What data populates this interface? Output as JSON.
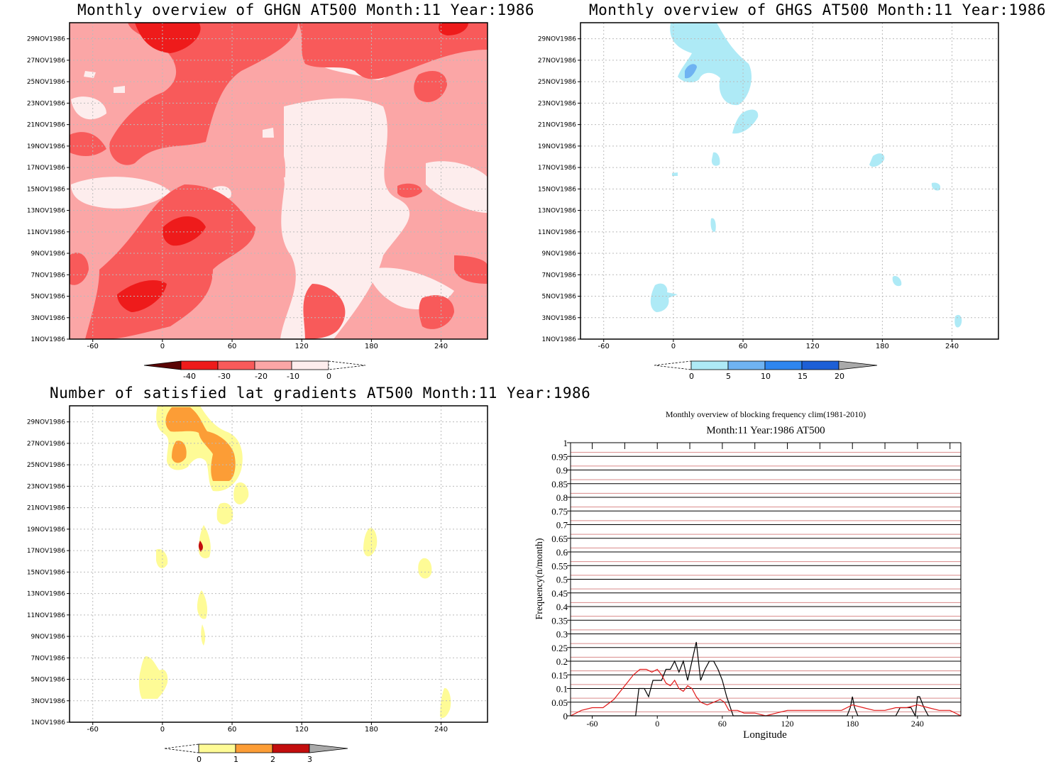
{
  "panels": {
    "ghgn": {
      "title": "Monthly overview of GHGN AT500 Month:11 Year:1986",
      "colorbar_labels": [
        "-40",
        "-30",
        "-20",
        "-10",
        "0"
      ],
      "colors": {
        "bg": "#fba6a6",
        "light": "#fdeded",
        "mid": "#f85a5a",
        "dark": "#ee1b1b",
        "deep": "#8a0a0a"
      }
    },
    "ghgs": {
      "title": "Monthly overview of GHGS AT500 Month:11 Year:1986",
      "colorbar_labels": [
        "0",
        "5",
        "10",
        "15",
        "20"
      ],
      "colors": {
        "c1": "#aeeaf6",
        "c2": "#6fb3f2",
        "c3": "#2e86ef",
        "c4": "#1d5fd6",
        "over": "#a9a9a9"
      }
    },
    "grad": {
      "title": "Number of satisfied lat gradients AT500 Month:11 Year:1986",
      "colorbar_labels": [
        "0",
        "1",
        "2",
        "3"
      ],
      "colors": {
        "c1": "#fefb96",
        "c2": "#fc9d36",
        "c3": "#c30e0e",
        "over": "#a9a9a9"
      }
    },
    "freq": {
      "title": "Monthly overview of blocking frequency clim(1981-2010)",
      "subtitle": "Month:11 Year:1986  AT500",
      "xlabel": "Longitude",
      "ylabel": "Frequency(n/month)"
    }
  },
  "date_ticks": [
    "1NOV1986",
    "3NOV1986",
    "5NOV1986",
    "7NOV1986",
    "9NOV1986",
    "11NOV1986",
    "13NOV1986",
    "15NOV1986",
    "17NOV1986",
    "19NOV1986",
    "21NOV1986",
    "23NOV1986",
    "25NOV1986",
    "27NOV1986",
    "29NOV1986"
  ],
  "lon_ticks": [
    "-60",
    "0",
    "60",
    "120",
    "180",
    "240"
  ],
  "chart_data": [
    {
      "type": "heatmap",
      "title": "Monthly overview of GHGN AT500 Month:11 Year:1986",
      "x_ticks": [
        -60,
        0,
        60,
        120,
        180,
        240
      ],
      "y_ticks": [
        "1NOV1986",
        "29NOV1986"
      ],
      "colorbar": [
        -40,
        -30,
        -20,
        -10,
        0
      ]
    },
    {
      "type": "heatmap",
      "title": "Monthly overview of GHGS AT500 Month:11 Year:1986",
      "x_ticks": [
        -60,
        0,
        60,
        120,
        180,
        240
      ],
      "colorbar": [
        0,
        5,
        10,
        15,
        20
      ]
    },
    {
      "type": "heatmap",
      "title": "Number of satisfied lat gradients AT500 Month:11 Year:1986",
      "x_ticks": [
        -60,
        0,
        60,
        120,
        180,
        240
      ],
      "colorbar": [
        0,
        1,
        2,
        3
      ]
    },
    {
      "type": "line",
      "title": "Monthly overview of blocking frequency clim(1981-2010)",
      "subtitle": "Month:11 Year:1986  AT500",
      "xlabel": "Longitude",
      "ylabel": "Frequency(n/month)",
      "xlim": [
        -80,
        280
      ],
      "ylim": [
        0,
        1
      ],
      "x_ticks": [
        -60,
        0,
        60,
        120,
        180,
        240
      ],
      "y_ticks": [
        "0",
        "0.05",
        "0.1",
        "0.15",
        "0.2",
        "0.25",
        "0.3",
        "0.35",
        "0.4",
        "0.45",
        "0.5",
        "0.55",
        "0.6",
        "0.65",
        "0.7",
        "0.75",
        "0.8",
        "0.85",
        "0.9",
        "0.95",
        "1"
      ],
      "series": [
        {
          "color": "#000000",
          "x": [
            -80,
            -20,
            -17,
            -12,
            -8,
            -4,
            0,
            4,
            8,
            12,
            16,
            20,
            24,
            28,
            32,
            36,
            40,
            44,
            48,
            52,
            56,
            60,
            64,
            70,
            80,
            175,
            178,
            180,
            182,
            185,
            220,
            224,
            228,
            234,
            238,
            240,
            242,
            246,
            250,
            280
          ],
          "y": [
            0,
            0,
            0.1,
            0.1,
            0.07,
            0.13,
            0.13,
            0.13,
            0.17,
            0.17,
            0.2,
            0.16,
            0.2,
            0.13,
            0.2,
            0.27,
            0.13,
            0.17,
            0.2,
            0.2,
            0.17,
            0.13,
            0.07,
            0,
            0,
            0,
            0.03,
            0.07,
            0.03,
            0,
            0,
            0.03,
            0.03,
            0.03,
            0,
            0.07,
            0.07,
            0.03,
            0,
            0
          ]
        },
        {
          "color": "#e21a1a",
          "x": [
            -80,
            -70,
            -60,
            -50,
            -40,
            -30,
            -22,
            -16,
            -10,
            -5,
            0,
            4,
            8,
            12,
            16,
            20,
            24,
            28,
            32,
            36,
            40,
            46,
            52,
            58,
            62,
            66,
            70,
            74,
            80,
            90,
            100,
            110,
            120,
            130,
            140,
            150,
            160,
            170,
            180,
            190,
            200,
            210,
            220,
            230,
            240,
            250,
            260,
            270,
            280
          ],
          "y": [
            0,
            0.02,
            0.03,
            0.03,
            0.06,
            0.11,
            0.15,
            0.17,
            0.17,
            0.16,
            0.17,
            0.15,
            0.12,
            0.11,
            0.13,
            0.1,
            0.09,
            0.11,
            0.1,
            0.07,
            0.05,
            0.04,
            0.05,
            0.06,
            0.05,
            0.02,
            0.02,
            0.02,
            0.01,
            0.01,
            0,
            0.01,
            0.02,
            0.02,
            0.02,
            0.02,
            0.02,
            0.02,
            0.04,
            0.03,
            0.02,
            0.02,
            0.03,
            0.03,
            0.04,
            0.03,
            0.02,
            0.02,
            0
          ]
        }
      ]
    }
  ]
}
